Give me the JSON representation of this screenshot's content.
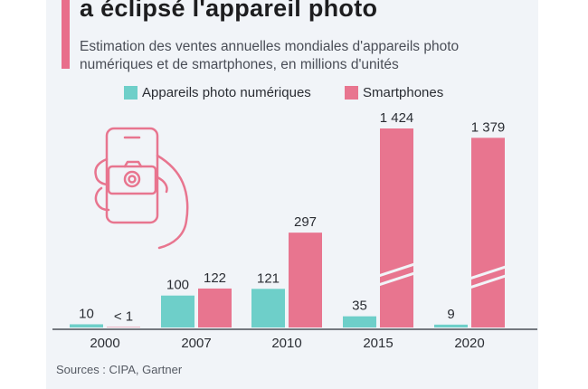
{
  "header": {
    "title": "a éclipsé l'appareil photo",
    "subtitle": "Estimation des ventes annuelles mondiales d'appareils photo numériques et de smartphones, en millions d'unités"
  },
  "legend": [
    {
      "label": "Appareils photo numériques",
      "color": "#6ecfc9"
    },
    {
      "label": "Smartphones",
      "color": "#e8758f"
    }
  ],
  "source": "Sources : CIPA, Gartner",
  "colors": {
    "accent": "#e86e8b",
    "panel": "#f1f4f8",
    "axis": "#4a4e57"
  },
  "illustration": {
    "icon": "hand-holding-phone-camera-icon"
  },
  "chart_data": {
    "type": "bar",
    "categories": [
      "2000",
      "2007",
      "2010",
      "2015",
      "2020"
    ],
    "series": [
      {
        "name": "Appareils photo numériques",
        "values": [
          10,
          100,
          121,
          35,
          9
        ],
        "labels": [
          "10",
          "100",
          "121",
          "35",
          "9"
        ]
      },
      {
        "name": "Smartphones",
        "values": [
          0.5,
          122,
          297,
          1424,
          1379
        ],
        "labels": [
          "< 1",
          "122",
          "297",
          "1 424",
          "1 379"
        ]
      }
    ],
    "axis_break": true,
    "title": "",
    "xlabel": "",
    "ylabel": "",
    "grid": false
  }
}
